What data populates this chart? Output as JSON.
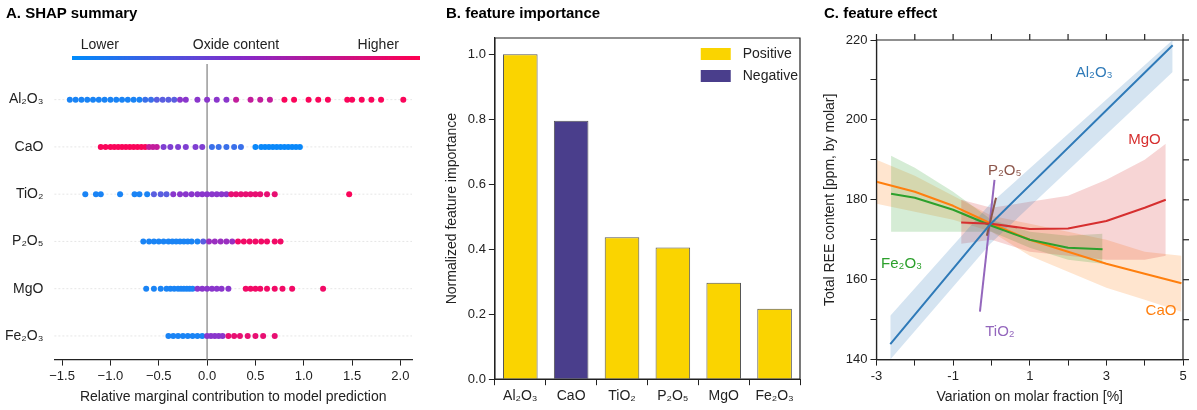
{
  "chart_data": [
    {
      "type": "scatter",
      "title": "A. SHAP summary",
      "xlabel": "Relative marginal contribution to model prediction",
      "orientation": "horizontal",
      "categories": [
        "Al₂O₃",
        "CaO",
        "TiO₂",
        "P₂O₅",
        "MgO",
        "Fe₂O₃"
      ],
      "xlim": [
        -1.58,
        2.12
      ],
      "xticks": [
        {
          "value": -1.5,
          "label": "−1.5"
        },
        {
          "value": -1,
          "label": "−1.0"
        },
        {
          "value": -0.5,
          "label": "−0.5"
        },
        {
          "value": 0,
          "label": "0.0"
        },
        {
          "value": 0.5,
          "label": "0.5"
        },
        {
          "value": 1,
          "label": "1.0"
        },
        {
          "value": 1.5,
          "label": "1.5"
        },
        {
          "value": 2,
          "label": "2.0"
        }
      ],
      "clabel": "Oxide content",
      "clim": [
        -0.1,
        1.15
      ],
      "cticks": [
        {
          "value": 0,
          "label": "Lower"
        },
        {
          "value": 1,
          "label": "Higher"
        }
      ],
      "grid": "y",
      "ref_lines": [
        {
          "axis": "x",
          "value": 0,
          "color": "#999999"
        }
      ],
      "series": [
        {
          "x": [
            "Al₂O₃",
            "Al₂O₃",
            "Al₂O₃",
            "Al₂O₃",
            "Al₂O₃",
            "Al₂O₃",
            "Al₂O₃",
            "Al₂O₃",
            "Al₂O₃",
            "Al₂O₃",
            "Al₂O₃",
            "Al₂O₃",
            "Al₂O₃",
            "Al₂O₃",
            "Al₂O₃",
            "Al₂O₃",
            "Al₂O₃",
            "Al₂O₃",
            "Al₂O₃",
            "Al₂O₃",
            "Al₂O₃",
            "Al₂O₃",
            "Al₂O₃",
            "Al₂O₃",
            "Al₂O₃",
            "Al₂O₃",
            "Al₂O₃",
            "Al₂O₃",
            "Al₂O₃",
            "Al₂O₃",
            "Al₂O₃",
            "Al₂O₃",
            "Al₂O₃",
            "Al₂O₃",
            "Al₂O₃",
            "Al₂O₃",
            "Al₂O₃",
            "Al₂O₃",
            "Al₂O₃",
            "Al₂O₃"
          ],
          "values": [
            -1.42,
            -1.36,
            -1.3,
            -1.24,
            -1.18,
            -1.12,
            -1.06,
            -1.0,
            -0.94,
            -0.88,
            -0.82,
            -0.76,
            -0.7,
            -0.64,
            -0.58,
            -0.52,
            -0.46,
            -0.4,
            -0.34,
            -0.28,
            -0.22,
            -0.1,
            0.0,
            0.1,
            0.2,
            0.3,
            0.45,
            0.55,
            0.65,
            0.8,
            0.9,
            1.05,
            1.15,
            1.25,
            1.45,
            1.5,
            1.6,
            1.7,
            1.8,
            2.03
          ],
          "colors": [
            "#1a84f5",
            "#1a84f5",
            "#1a84f5",
            "#1a84f5",
            "#1a84f5",
            "#1a84f5",
            "#1a84f5",
            "#1a84f5",
            "#1a84f5",
            "#1a84f5",
            "#1a84f5",
            "#1a84f5",
            "#1a84f5",
            "#3a70ea",
            "#3a70ea",
            "#5a5ee0",
            "#5a5ee0",
            "#5a5ee0",
            "#5a5ee0",
            "#8a36cc",
            "#8a36cc",
            "#8a36cc",
            "#8a36cc",
            "#8a36cc",
            "#8a36cc",
            "#c21d9c",
            "#c21d9c",
            "#c21d9c",
            "#c21d9c",
            "#fa055a",
            "#fa055a",
            "#fa055a",
            "#fa055a",
            "#fa055a",
            "#fa055a",
            "#fa055a",
            "#fa055a",
            "#fa055a",
            "#fa055a",
            "#fa055a"
          ]
        },
        {
          "x": [
            "CaO",
            "CaO",
            "CaO",
            "CaO",
            "CaO",
            "CaO",
            "CaO",
            "CaO",
            "CaO",
            "CaO",
            "CaO",
            "CaO",
            "CaO",
            "CaO",
            "CaO",
            "CaO",
            "CaO",
            "CaO",
            "CaO",
            "CaO",
            "CaO",
            "CaO",
            "CaO",
            "CaO",
            "CaO",
            "CaO",
            "CaO",
            "CaO",
            "CaO",
            "CaO",
            "CaO",
            "CaO",
            "CaO",
            "CaO",
            "CaO",
            "CaO",
            "CaO",
            "CaO"
          ],
          "values": [
            -1.1,
            -1.05,
            -1.0,
            -0.96,
            -0.92,
            -0.88,
            -0.84,
            -0.8,
            -0.76,
            -0.72,
            -0.68,
            -0.64,
            -0.6,
            -0.56,
            -0.52,
            -0.45,
            -0.38,
            -0.3,
            -0.22,
            -0.12,
            -0.05,
            0.05,
            0.12,
            0.2,
            0.28,
            0.35,
            0.5,
            0.56,
            0.6,
            0.64,
            0.68,
            0.72,
            0.76,
            0.8,
            0.84,
            0.88,
            0.92,
            0.96
          ],
          "colors": [
            "#fa055a",
            "#fa055a",
            "#fa055a",
            "#fa055a",
            "#fa055a",
            "#fa055a",
            "#fa055a",
            "#fa055a",
            "#fa055a",
            "#fa055a",
            "#fa055a",
            "#fa055a",
            "#c21d9c",
            "#c21d9c",
            "#c21d9c",
            "#7f3fd2",
            "#7f3fd2",
            "#7f3fd2",
            "#7f3fd2",
            "#7f3fd2",
            "#7f3fd2",
            "#3a70ea",
            "#3a70ea",
            "#3a70ea",
            "#3a70ea",
            "#3a70ea",
            "#0a88fa",
            "#0a88fa",
            "#0a88fa",
            "#0a88fa",
            "#0a88fa",
            "#0a88fa",
            "#0a88fa",
            "#0a88fa",
            "#0a88fa",
            "#0a88fa",
            "#0a88fa",
            "#0a88fa"
          ]
        },
        {
          "x": [
            "TiO₂",
            "TiO₂",
            "TiO₂",
            "TiO₂",
            "TiO₂",
            "TiO₂",
            "TiO₂",
            "TiO₂",
            "TiO₂",
            "TiO₂",
            "TiO₂",
            "TiO₂",
            "TiO₂",
            "TiO₂",
            "TiO₂",
            "TiO₂",
            "TiO₂",
            "TiO₂",
            "TiO₂",
            "TiO₂",
            "TiO₂",
            "TiO₂",
            "TiO₂",
            "TiO₂",
            "TiO₂",
            "TiO₂",
            "TiO₂",
            "TiO₂",
            "TiO₂",
            "TiO₂",
            "TiO₂"
          ],
          "values": [
            -1.26,
            -1.15,
            -1.1,
            -0.9,
            -0.75,
            -0.7,
            -0.62,
            -0.55,
            -0.48,
            -0.42,
            -0.35,
            -0.28,
            -0.22,
            -0.16,
            -0.1,
            -0.05,
            0.0,
            0.05,
            0.1,
            0.15,
            0.2,
            0.25,
            0.3,
            0.35,
            0.4,
            0.45,
            0.5,
            0.55,
            0.62,
            0.7,
            1.47
          ],
          "colors": [
            "#1a84f5",
            "#1a84f5",
            "#1a84f5",
            "#1a84f5",
            "#1a84f5",
            "#1a84f5",
            "#1a84f5",
            "#5a5ee0",
            "#5a5ee0",
            "#5a5ee0",
            "#8a36cc",
            "#8a36cc",
            "#8a36cc",
            "#8a36cc",
            "#8a36cc",
            "#8a36cc",
            "#8a36cc",
            "#8a36cc",
            "#8a36cc",
            "#8a36cc",
            "#8a36cc",
            "#e80f72",
            "#e80f72",
            "#e80f72",
            "#e80f72",
            "#e80f72",
            "#e80f72",
            "#e80f72",
            "#e80f72",
            "#e80f72",
            "#fa055a"
          ]
        },
        {
          "x": [
            "P₂O₅",
            "P₂O₅",
            "P₂O₅",
            "P₂O₅",
            "P₂O₅",
            "P₂O₅",
            "P₂O₅",
            "P₂O₅",
            "P₂O₅",
            "P₂O₅",
            "P₂O₅",
            "P₂O₅",
            "P₂O₅",
            "P₂O₅",
            "P₂O₅",
            "P₂O₅",
            "P₂O₅",
            "P₂O₅",
            "P₂O₅",
            "P₂O₅",
            "P₂O₅",
            "P₂O₅",
            "P₂O₅",
            "P₂O₅",
            "P₂O₅",
            "P₂O₅",
            "P₂O₅"
          ],
          "values": [
            -0.66,
            -0.6,
            -0.55,
            -0.5,
            -0.45,
            -0.4,
            -0.36,
            -0.32,
            -0.28,
            -0.24,
            -0.2,
            -0.16,
            -0.1,
            -0.04,
            0.02,
            0.08,
            0.14,
            0.2,
            0.26,
            0.32,
            0.38,
            0.44,
            0.5,
            0.56,
            0.62,
            0.7,
            0.76
          ],
          "colors": [
            "#1a84f5",
            "#1a84f5",
            "#1a84f5",
            "#1a84f5",
            "#1a84f5",
            "#1a84f5",
            "#1a84f5",
            "#1a84f5",
            "#1a84f5",
            "#1a84f5",
            "#1a84f5",
            "#1a84f5",
            "#1a84f5",
            "#5a5ee0",
            "#9a2fc0",
            "#9a2fc0",
            "#9a2fc0",
            "#9a2fc0",
            "#9a2fc0",
            "#f20a66",
            "#f20a66",
            "#f20a66",
            "#f20a66",
            "#f20a66",
            "#f20a66",
            "#f20a66",
            "#f20a66"
          ]
        },
        {
          "x": [
            "MgO",
            "MgO",
            "MgO",
            "MgO",
            "MgO",
            "MgO",
            "MgO",
            "MgO",
            "MgO",
            "MgO",
            "MgO",
            "MgO",
            "MgO",
            "MgO",
            "MgO",
            "MgO",
            "MgO",
            "MgO",
            "MgO",
            "MgO",
            "MgO",
            "MgO",
            "MgO",
            "MgO",
            "MgO",
            "MgO",
            "MgO",
            "MgO"
          ],
          "values": [
            -0.63,
            -0.55,
            -0.48,
            -0.42,
            -0.38,
            -0.34,
            -0.3,
            -0.27,
            -0.24,
            -0.21,
            -0.18,
            -0.15,
            -0.1,
            -0.05,
            0.0,
            0.05,
            0.1,
            0.15,
            0.22,
            0.4,
            0.45,
            0.5,
            0.55,
            0.62,
            0.7,
            0.78,
            0.88,
            1.2
          ],
          "colors": [
            "#1a84f5",
            "#1a84f5",
            "#1a84f5",
            "#1a84f5",
            "#1a84f5",
            "#1a84f5",
            "#1a84f5",
            "#1a84f5",
            "#1a84f5",
            "#1a84f5",
            "#1a84f5",
            "#1a84f5",
            "#8a36cc",
            "#8a36cc",
            "#8a36cc",
            "#8a36cc",
            "#8a36cc",
            "#8a36cc",
            "#8a36cc",
            "#f20a66",
            "#f20a66",
            "#f20a66",
            "#f20a66",
            "#f20a66",
            "#f20a66",
            "#f20a66",
            "#f20a66",
            "#f20a66"
          ]
        },
        {
          "x": [
            "Fe₂O₃",
            "Fe₂O₃",
            "Fe₂O₃",
            "Fe₂O₃",
            "Fe₂O₃",
            "Fe₂O₃",
            "Fe₂O₃",
            "Fe₂O₃",
            "Fe₂O₃",
            "Fe₂O₃",
            "Fe₂O₃",
            "Fe₂O₃",
            "Fe₂O₃",
            "Fe₂O₃",
            "Fe₂O₃",
            "Fe₂O₃",
            "Fe₂O₃",
            "Fe₂O₃",
            "Fe₂O₃",
            "Fe₂O₃"
          ],
          "values": [
            -0.4,
            -0.35,
            -0.3,
            -0.25,
            -0.2,
            -0.15,
            -0.1,
            -0.05,
            0.0,
            0.04,
            0.08,
            0.12,
            0.16,
            0.22,
            0.28,
            0.34,
            0.42,
            0.5,
            0.58,
            0.7
          ],
          "colors": [
            "#1a84f5",
            "#1a84f5",
            "#1a84f5",
            "#1a84f5",
            "#1a84f5",
            "#1a84f5",
            "#1a84f5",
            "#1a84f5",
            "#8a36cc",
            "#8a36cc",
            "#8a36cc",
            "#8a36cc",
            "#8a36cc",
            "#e80f72",
            "#e80f72",
            "#e80f72",
            "#e80f72",
            "#e80f72",
            "#e80f72",
            "#e80f72"
          ]
        }
      ]
    },
    {
      "type": "bar",
      "title": "B. feature importance",
      "ylabel": "Normalized feature importance",
      "categories": [
        "Al₂O₃",
        "CaO",
        "TiO₂",
        "P₂O₅",
        "MgO",
        "Fe₂O₃"
      ],
      "ylim": [
        0,
        1.05
      ],
      "yticks": [
        {
          "value": 0,
          "label": "0.0"
        },
        {
          "value": 0.2,
          "label": "0.2"
        },
        {
          "value": 0.4,
          "label": "0.4"
        },
        {
          "value": 0.6,
          "label": "0.6"
        },
        {
          "value": 0.8,
          "label": "0.8"
        },
        {
          "value": 1,
          "label": "1.0"
        }
      ],
      "grid": false,
      "legend": "top right",
      "series": [
        {
          "name": "Positive",
          "color": "#fad400",
          "values": [
            1.0,
            null,
            0.437,
            0.405,
            0.297,
            0.217
          ]
        },
        {
          "name": "Negative",
          "color": "#4a3e8c",
          "values": [
            null,
            0.795,
            null,
            null,
            null,
            null
          ]
        }
      ]
    },
    {
      "type": "line",
      "title": "C. feature effect",
      "xlabel": "Variation on molar fraction [%]",
      "ylabel": "Total REE content [ppm, by molar]",
      "xlim": [
        -3,
        5
      ],
      "xticks": [
        -3,
        {
          "value": -2,
          "label": null
        },
        -1,
        {
          "value": 0,
          "label": null
        },
        1,
        {
          "value": 2,
          "label": null
        },
        3,
        {
          "value": 4,
          "label": null
        },
        5
      ],
      "ylim": [
        140,
        220
      ],
      "yticks": [
        140,
        {
          "value": 150,
          "label": null
        },
        160,
        {
          "value": 170,
          "label": null
        },
        180,
        {
          "value": 190,
          "label": null
        },
        200,
        {
          "value": 210,
          "label": null
        },
        220
      ],
      "grid": false,
      "series": [
        {
          "name": "Al₂O₃",
          "color": "#2f7ab8",
          "x": [
            -2.64,
            -0.03,
            4.73
          ],
          "values": [
            143.9,
            173.9,
            218.7
          ],
          "lower": [
            140,
            169,
            212
          ],
          "upper": [
            151,
            179,
            220
          ]
        },
        {
          "name": "MgO",
          "color": "#d62f2f",
          "x": [
            -0.79,
            0,
            1,
            2,
            3,
            4,
            4.55
          ],
          "values": [
            174.3,
            174,
            172.7,
            172.8,
            174.7,
            178,
            180
          ],
          "lower": [
            169,
            170,
            167,
            166,
            165,
            165,
            166
          ],
          "upper": [
            180,
            178,
            179.5,
            181,
            185,
            190,
            194
          ]
        },
        {
          "name": "P₂O₅",
          "color": "#8c564b",
          "x": [
            -0.12,
            0.12
          ],
          "values": [
            171,
            180.5
          ]
        },
        {
          "name": "Fe₂O₃",
          "color": "#2ca02c",
          "x": [
            -2.62,
            -2,
            -1,
            0,
            1,
            2,
            2.9
          ],
          "values": [
            181.5,
            180.5,
            177.5,
            173.5,
            170,
            168,
            167.6
          ],
          "lower": [
            172,
            172,
            172,
            172,
            168,
            165,
            164
          ],
          "upper": [
            191,
            188,
            182,
            175,
            172,
            171,
            171.5
          ]
        },
        {
          "name": "TiO₂",
          "color": "#9467bd",
          "x": [
            -0.3,
            0.08
          ],
          "values": [
            152,
            185
          ]
        },
        {
          "name": "CaO",
          "color": "#ff7f0e",
          "x": [
            -3,
            -2,
            -1,
            0,
            1,
            2,
            3,
            4,
            4.96
          ],
          "values": [
            184.5,
            182,
            178.5,
            174,
            170,
            167,
            164,
            161.5,
            159.1
          ],
          "lower": [
            179,
            177,
            175,
            172,
            166,
            162,
            158,
            155,
            152
          ],
          "upper": [
            190,
            186,
            181,
            176,
            174,
            172,
            170,
            167,
            166
          ]
        }
      ]
    }
  ]
}
